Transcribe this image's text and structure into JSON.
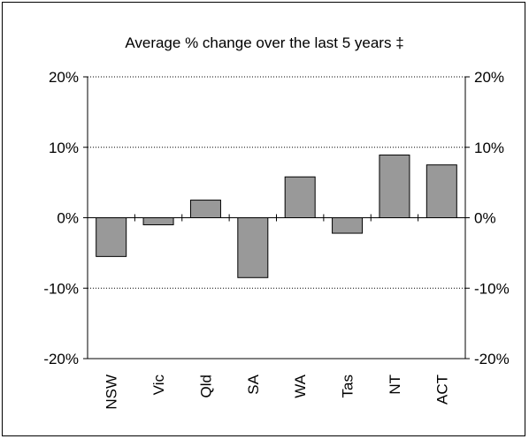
{
  "chart_data": {
    "type": "bar",
    "title": "Average % change over the last 5 years ‡",
    "categories": [
      "NSW",
      "Vic",
      "Qld",
      "SA",
      "WA",
      "Tas",
      "NT",
      "ACT"
    ],
    "values": [
      -5.5,
      -1.0,
      2.5,
      -8.5,
      5.8,
      -2.2,
      8.9,
      7.5
    ],
    "ylim": [
      -20,
      20
    ],
    "yticks": [
      20,
      10,
      0,
      -10,
      -20
    ],
    "ytick_labels": [
      "20%",
      "10%",
      "0%",
      "-10%",
      "-20%"
    ],
    "grid": "dotted horizontal",
    "bar_color": "#999999",
    "axis_color": "#000000",
    "legend": "none",
    "ylabel": "",
    "xlabel": ""
  }
}
